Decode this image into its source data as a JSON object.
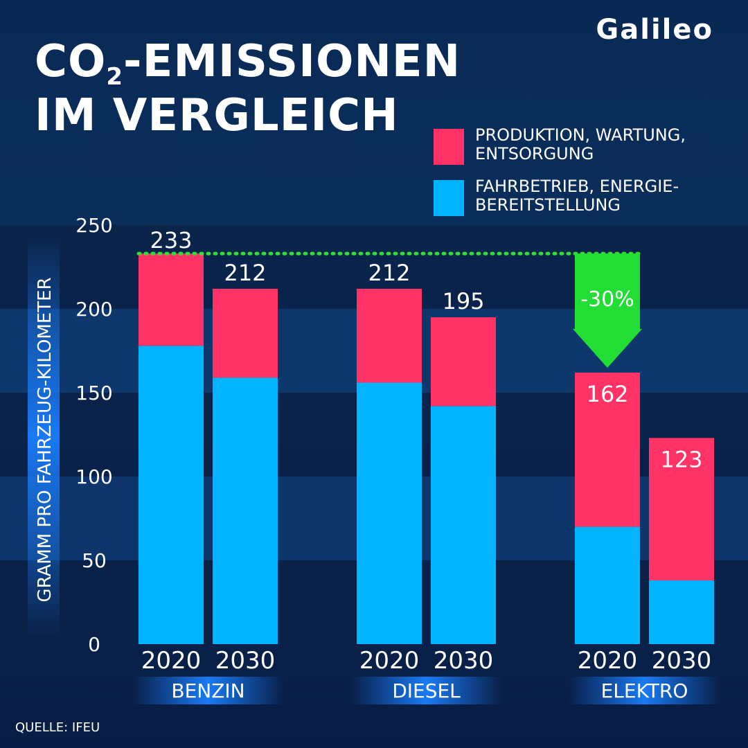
{
  "brand": {
    "logo_text": "Galileo"
  },
  "title": {
    "line1_prefix": "CO",
    "line1_sub": "2",
    "line1_suffix": "-EMISSIONEN",
    "line2": "IM VERGLEICH"
  },
  "source": "QUELLE: IFEU",
  "colors": {
    "production": "#ff3366",
    "operation": "#00b4ff",
    "highlight": "#22dd33",
    "reference_line": "#33dd33"
  },
  "chart_data": {
    "type": "bar",
    "stacked": true,
    "ylabel": "GRAMM PRO FAHRZEUG-KILOMETER",
    "ylim": [
      0,
      250
    ],
    "yticks": [
      0,
      50,
      100,
      150,
      200,
      250
    ],
    "groups": [
      "BENZIN",
      "DIESEL",
      "ELEKTRO"
    ],
    "years": [
      "2020",
      "2030"
    ],
    "series": [
      {
        "name": "PRODUKTION, WARTUNG, ENTSORGUNG",
        "values": [
          55,
          53,
          56,
          53,
          92,
          85
        ]
      },
      {
        "name": "FAHRBETRIEB, ENERGIE-BEREITSTELLUNG",
        "values": [
          178,
          159,
          156,
          142,
          70,
          38
        ]
      }
    ],
    "totals": [
      233,
      212,
      212,
      195,
      162,
      123
    ],
    "legend_position": "top-right",
    "grid": false,
    "reference_value": 233,
    "annotation": {
      "label": "-30%",
      "target_group": "ELEKTRO",
      "target_year": "2020"
    }
  }
}
